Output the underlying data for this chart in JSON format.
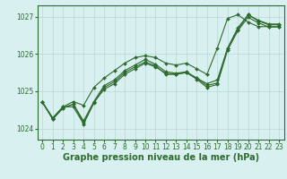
{
  "xlabel": "Graphe pression niveau de la mer (hPa)",
  "x_values": [
    0,
    1,
    2,
    3,
    4,
    5,
    6,
    7,
    8,
    9,
    10,
    11,
    12,
    13,
    14,
    15,
    16,
    17,
    18,
    19,
    20,
    21,
    22,
    23
  ],
  "series": [
    [
      1024.7,
      1024.25,
      1024.55,
      1024.65,
      1024.15,
      1024.7,
      1025.05,
      1025.2,
      1025.45,
      1025.6,
      1025.75,
      1025.65,
      1025.48,
      1025.45,
      1025.5,
      1025.35,
      1025.2,
      1025.3,
      1026.15,
      1026.65,
      1027.05,
      1026.9,
      1026.8,
      1026.8
    ],
    [
      1024.7,
      1024.25,
      1024.55,
      1024.65,
      1024.2,
      1024.72,
      1025.15,
      1025.3,
      1025.55,
      1025.7,
      1025.85,
      1025.72,
      1025.52,
      1025.48,
      1025.52,
      1025.35,
      1025.15,
      1025.22,
      1026.15,
      1026.7,
      1027.05,
      1026.88,
      1026.78,
      1026.78
    ],
    [
      1024.7,
      1024.28,
      1024.58,
      1024.58,
      1024.12,
      1024.68,
      1025.1,
      1025.25,
      1025.5,
      1025.65,
      1025.78,
      1025.68,
      1025.45,
      1025.45,
      1025.5,
      1025.32,
      1025.1,
      1025.18,
      1026.1,
      1026.62,
      1026.98,
      1026.83,
      1026.72,
      1026.72
    ],
    [
      1024.7,
      1024.28,
      1024.58,
      1024.72,
      1024.62,
      1025.1,
      1025.35,
      1025.55,
      1025.75,
      1025.9,
      1025.95,
      1025.9,
      1025.75,
      1025.7,
      1025.75,
      1025.6,
      1025.45,
      1026.15,
      1026.95,
      1027.05,
      1026.85,
      1026.73,
      1026.73,
      1026.73
    ]
  ],
  "line_color": "#2d6a2d",
  "bg_color": "#d8f0f0",
  "grid_color": "#b8d8d8",
  "ylim": [
    1023.7,
    1027.3
  ],
  "yticks": [
    1024,
    1025,
    1026,
    1027
  ],
  "xticks": [
    0,
    1,
    2,
    3,
    4,
    5,
    6,
    7,
    8,
    9,
    10,
    11,
    12,
    13,
    14,
    15,
    16,
    17,
    18,
    19,
    20,
    21,
    22,
    23
  ],
  "marker_size": 2.0,
  "line_width": 0.8,
  "xlabel_fontsize": 7,
  "tick_fontsize": 5.5
}
